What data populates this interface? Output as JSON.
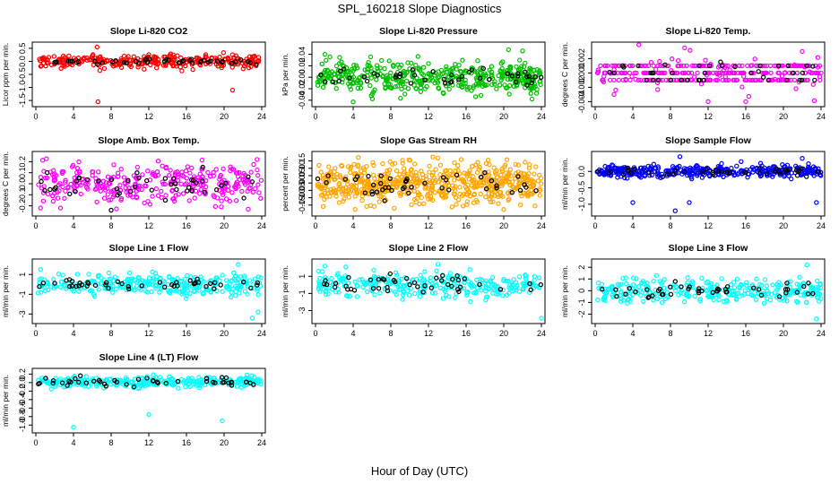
{
  "figure": {
    "title": "SPL_160218  Slope Diagnostics",
    "xlabel": "Hour of Day (UTC)"
  },
  "chart_data": [
    {
      "type": "scatter",
      "title": "Slope Li-820 CO2",
      "ylabel": "Licor ppm per min.",
      "xlim": [
        0,
        24
      ],
      "ylim": [
        -1.6,
        0.6
      ],
      "xticks": [
        "0",
        "4",
        "8",
        "12",
        "16",
        "20",
        "24"
      ],
      "yticks": [
        {
          "v": 0.5,
          "t": "0.5"
        },
        {
          "v": 0,
          "t": "0.0"
        },
        {
          "v": -0.5,
          "t": "-0.5"
        },
        {
          "v": -1,
          "t": "-1.0"
        },
        {
          "v": -1.5,
          "t": "-1.5"
        }
      ],
      "series": [
        {
          "color": "#ff0000",
          "n": 300,
          "center": 0.0,
          "spread": 0.12,
          "outliers": [
            [
              6.6,
              -1.55
            ],
            [
              20.9,
              -1.1
            ],
            [
              6.5,
              0.55
            ],
            [
              11.5,
              -0.3
            ],
            [
              6.8,
              -0.35
            ]
          ]
        },
        {
          "color": "#000000",
          "n": 45,
          "center": 0.0,
          "spread": 0.06,
          "outliers": []
        }
      ]
    },
    {
      "type": "scatter",
      "title": "Slope Li-820 Pressure",
      "ylabel": "kPa per min.",
      "xlim": [
        0,
        24
      ],
      "ylim": [
        -0.045,
        0.055
      ],
      "xticks": [
        "0",
        "4",
        "8",
        "12",
        "16",
        "20",
        "24"
      ],
      "yticks": [
        {
          "v": 0.04,
          "t": "0.04"
        },
        {
          "v": 0.02,
          "t": "0.02"
        },
        {
          "v": 0,
          "t": "0.00"
        },
        {
          "v": -0.02,
          "t": "-0.02"
        },
        {
          "v": -0.04,
          "t": "-0.04"
        }
      ],
      "series": [
        {
          "color": "#00c000",
          "n": 450,
          "center": 0.0,
          "spread": 0.013,
          "outliers": [
            [
              1,
              0.04
            ],
            [
              4,
              -0.043
            ],
            [
              20.5,
              0.048
            ],
            [
              22,
              0.046
            ],
            [
              23,
              -0.038
            ]
          ]
        },
        {
          "color": "#000000",
          "n": 45,
          "center": 0.0,
          "spread": 0.008,
          "outliers": []
        }
      ]
    },
    {
      "type": "scatter",
      "title": "Slope Li-820 Temp.",
      "ylabel": "degrees C per min.",
      "xlim": [
        0,
        24
      ],
      "ylim": [
        -0.0042,
        0.0038
      ],
      "xticks": [
        "0",
        "4",
        "8",
        "12",
        "16",
        "20",
        "24"
      ],
      "yticks": [
        {
          "v": 0.002,
          "t": "0.002"
        },
        {
          "v": 0,
          "t": "0.000"
        },
        {
          "v": -0.002,
          "t": "-0.002"
        },
        {
          "v": -0.004,
          "t": "-0.004"
        }
      ],
      "series": [
        {
          "color": "#ff00ff",
          "n": 360,
          "center": 0.0,
          "spread": 0.0015,
          "levels": [
            0.001,
            0,
            -0.001
          ],
          "outliers": [
            [
              9.5,
              0.0035
            ],
            [
              12,
              -0.004
            ],
            [
              16,
              -0.004
            ],
            [
              22,
              0.003
            ],
            [
              2,
              -0.003
            ]
          ]
        },
        {
          "color": "#000000",
          "n": 40,
          "center": 0.0,
          "spread": 0.0008,
          "levels": [
            0.001,
            0,
            -0.001
          ],
          "outliers": []
        }
      ]
    },
    {
      "type": "scatter",
      "title": "Slope Amb. Box Temp.",
      "ylabel": "degrees C per min.",
      "xlim": [
        0,
        24
      ],
      "ylim": [
        -0.26,
        0.26
      ],
      "xticks": [
        "0",
        "4",
        "8",
        "12",
        "16",
        "20",
        "24"
      ],
      "yticks": [
        {
          "v": 0.2,
          "t": "0.2"
        },
        {
          "v": 0.1,
          "t": "0.1"
        },
        {
          "v": 0,
          "t": "0.0"
        },
        {
          "v": -0.1,
          "t": "-0.1"
        },
        {
          "v": -0.2,
          "t": "-0.2"
        }
      ],
      "series": [
        {
          "color": "#ff00ff",
          "n": 330,
          "center": 0.0,
          "spread": 0.09,
          "outliers": [
            [
              23.5,
              0.22
            ],
            [
              0.5,
              -0.22
            ]
          ]
        },
        {
          "color": "#000000",
          "n": 45,
          "center": 0.0,
          "spread": 0.06,
          "outliers": [
            [
              8,
              -0.24
            ]
          ]
        }
      ]
    },
    {
      "type": "scatter",
      "title": "Slope Gas Stream RH",
      "ylabel": "percent per min.",
      "xlim": [
        0,
        24
      ],
      "ylim": [
        -0.2,
        0.19
      ],
      "xticks": [
        "0",
        "4",
        "8",
        "12",
        "16",
        "20",
        "24"
      ],
      "yticks": [
        {
          "v": 0.15,
          "t": "0.15"
        },
        {
          "v": 0.1,
          "t": "0.10"
        },
        {
          "v": 0.05,
          "t": "0.05"
        },
        {
          "v": 0,
          "t": "0.00"
        },
        {
          "v": -0.05,
          "t": "-0.05"
        },
        {
          "v": -0.1,
          "t": "-0.10"
        },
        {
          "v": -0.15,
          "t": "-0.15"
        }
      ],
      "series": [
        {
          "color": "#ffa500",
          "n": 620,
          "center": 0.0,
          "spread": 0.065,
          "outliers": [
            [
              20,
              -0.18
            ],
            [
              13,
              0.17
            ]
          ]
        },
        {
          "color": "#000000",
          "n": 45,
          "center": 0.0,
          "spread": 0.04,
          "outliers": []
        }
      ]
    },
    {
      "type": "scatter",
      "title": "Slope Sample Flow",
      "ylabel": "ml/min per min.",
      "xlim": [
        0,
        24
      ],
      "ylim": [
        -1.25,
        0.5
      ],
      "xticks": [
        "0",
        "4",
        "8",
        "12",
        "16",
        "20",
        "24"
      ],
      "yticks": [
        {
          "v": 0,
          "t": "0.0"
        },
        {
          "v": -0.5,
          "t": "-0.5"
        },
        {
          "v": -1,
          "t": "-1.0"
        }
      ],
      "series": [
        {
          "color": "#0000ff",
          "n": 380,
          "center": 0.0,
          "spread": 0.09,
          "outliers": [
            [
              4,
              -0.95
            ],
            [
              8.5,
              -1.2
            ],
            [
              9,
              0.45
            ],
            [
              10,
              -0.95
            ],
            [
              15.5,
              0.3
            ],
            [
              22,
              0.4
            ],
            [
              23.5,
              -0.95
            ]
          ]
        },
        {
          "color": "#000000",
          "n": 45,
          "center": 0.0,
          "spread": 0.06,
          "outliers": []
        }
      ]
    },
    {
      "type": "scatter",
      "title": "Slope Line 1 Flow",
      "ylabel": "ml/min per min.",
      "xlim": [
        0,
        24
      ],
      "ylim": [
        -3.6,
        2.2
      ],
      "xticks": [
        "0",
        "4",
        "8",
        "12",
        "16",
        "20",
        "24"
      ],
      "yticks": [
        {
          "v": 1,
          "t": "1"
        },
        {
          "v": -1,
          "t": "-1"
        },
        {
          "v": -3,
          "t": "-3"
        }
      ],
      "series": [
        {
          "color": "#00ffff",
          "n": 300,
          "center": 0.0,
          "spread": 0.5,
          "outliers": [
            [
              21.5,
              2.0
            ],
            [
              23.6,
              -2.8
            ],
            [
              0.5,
              1.5
            ],
            [
              23,
              -3.4
            ]
          ]
        },
        {
          "color": "#000000",
          "n": 45,
          "center": 0.0,
          "spread": 0.25,
          "outliers": []
        }
      ]
    },
    {
      "type": "scatter",
      "title": "Slope Line 2 Flow",
      "ylabel": "ml/min per min.",
      "xlim": [
        0,
        24
      ],
      "ylim": [
        -4.1,
        2.6
      ],
      "xticks": [
        "0",
        "4",
        "8",
        "12",
        "16",
        "20",
        "24"
      ],
      "yticks": [
        {
          "v": 1,
          "t": "1"
        },
        {
          "v": -1,
          "t": "-1"
        },
        {
          "v": -3,
          "t": "-3"
        }
      ],
      "series": [
        {
          "color": "#00ffff",
          "n": 300,
          "center": 0.0,
          "spread": 0.7,
          "outliers": [
            [
              24,
              -3.9
            ],
            [
              1,
              2.2
            ],
            [
              13,
              2.4
            ]
          ]
        },
        {
          "color": "#000000",
          "n": 45,
          "center": 0.0,
          "spread": 0.6,
          "outliers": []
        }
      ]
    },
    {
      "type": "scatter",
      "title": "Slope Line 3 Flow",
      "ylabel": "ml/min per min.",
      "xlim": [
        0,
        24
      ],
      "ylim": [
        -2.5,
        2.4
      ],
      "xticks": [
        "0",
        "4",
        "8",
        "12",
        "16",
        "20",
        "24"
      ],
      "yticks": [
        {
          "v": 2,
          "t": "2"
        },
        {
          "v": 1,
          "t": "1"
        },
        {
          "v": 0,
          "t": "0"
        },
        {
          "v": -1,
          "t": "-1"
        },
        {
          "v": -2,
          "t": "-2"
        }
      ],
      "series": [
        {
          "color": "#00ffff",
          "n": 300,
          "center": 0.0,
          "spread": 0.5,
          "outliers": [
            [
              23.5,
              -2.4
            ],
            [
              22.5,
              2.2
            ],
            [
              6.5,
              1.3
            ]
          ]
        },
        {
          "color": "#000000",
          "n": 45,
          "center": 0.0,
          "spread": 0.35,
          "outliers": []
        }
      ]
    },
    {
      "type": "scatter",
      "title": "Slope Line 4 (LT) Flow",
      "ylabel": "ml/min per min.",
      "xlim": [
        0,
        24
      ],
      "ylim": [
        -1.1,
        0.25
      ],
      "xticks": [
        "0",
        "4",
        "8",
        "12",
        "16",
        "20",
        "24"
      ],
      "yticks": [
        {
          "v": 0.2,
          "t": "0.2"
        },
        {
          "v": 0,
          "t": "0.0"
        },
        {
          "v": -0.2,
          "t": "-0.2"
        },
        {
          "v": -0.4,
          "t": "-0.4"
        },
        {
          "v": -0.6,
          "t": "-0.6"
        },
        {
          "v": -0.8,
          "t": "-0.8"
        },
        {
          "v": -1,
          "t": "-1.0"
        }
      ],
      "series": [
        {
          "color": "#00ffff",
          "n": 300,
          "center": 0.02,
          "spread": 0.06,
          "outliers": [
            [
              4,
              -1.05
            ],
            [
              12,
              -0.75
            ],
            [
              19.8,
              -0.9
            ]
          ]
        },
        {
          "color": "#000000",
          "n": 45,
          "center": 0.02,
          "spread": 0.05,
          "outliers": []
        }
      ]
    }
  ]
}
